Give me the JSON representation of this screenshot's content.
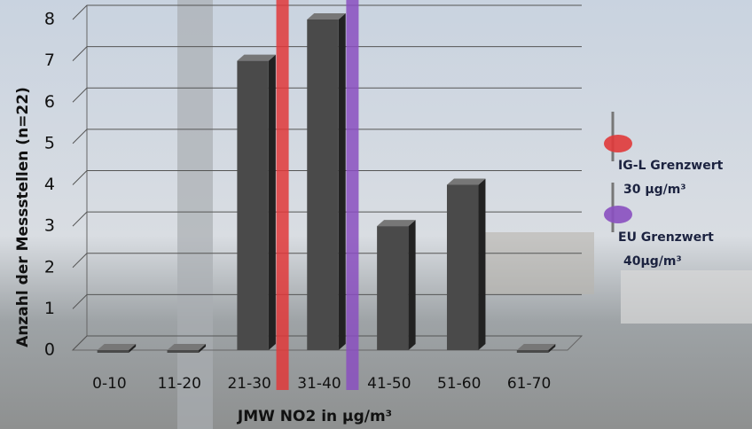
{
  "chart_data": {
    "type": "bar",
    "title": null,
    "x_label": "JMW NO2 in µg/m³",
    "y_label": "Anzahl der Messstellen (n=22)",
    "categories": [
      "0-10",
      "11-20",
      "21-30",
      "31-40",
      "41-50",
      "51-60",
      "61-70"
    ],
    "values": [
      0,
      0,
      7,
      8,
      3,
      4,
      0
    ],
    "color": "#4a4a4a",
    "ylim": [
      0,
      8
    ],
    "yticks": [
      0,
      1,
      2,
      3,
      4,
      5,
      6,
      7,
      8
    ],
    "grid": true,
    "reference_lines": [
      {
        "label": "IG-L Grenzwert",
        "value_label": "30 µg/m³",
        "color": "#e0383a"
      },
      {
        "label": "EU Grenzwert",
        "value_label": "40µg/m³",
        "color": "#8a4fc0"
      }
    ]
  }
}
